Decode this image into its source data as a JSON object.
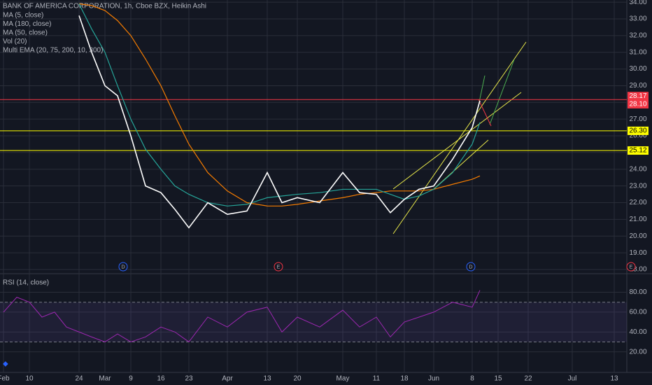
{
  "chart_data": {
    "type": "line",
    "title": "BANK OF AMERICA CORPORATION, 1h, Cboe BZX, Heikin Ashi",
    "legend": [
      "MA (5, close)",
      "MA (180, close)",
      "MA (50, close)",
      "Vol (20)",
      "Multi EMA (20, 75, 200, 10, 300)"
    ],
    "categories": [
      "Feb",
      null,
      "10",
      null,
      null,
      null,
      "24",
      null,
      "Mar",
      null,
      "9",
      null,
      "16",
      null,
      "23",
      null,
      "Apr",
      null,
      "13",
      null,
      "20",
      null,
      "May",
      null,
      "11",
      null,
      "18",
      null,
      "Jun",
      null,
      "8",
      null,
      "15",
      "22",
      "Jul",
      "13"
    ],
    "series": [
      {
        "name": "MA (5, close)",
        "color": "#ffffff",
        "values": [
          null,
          null,
          null,
          null,
          null,
          null,
          33.2,
          31.0,
          29.0,
          28.4,
          26.0,
          23.0,
          22.6,
          21.6,
          20.5,
          22.0,
          21.3,
          21.5,
          23.8,
          22.0,
          22.3,
          22.0,
          23.8,
          22.6,
          22.5,
          21.4,
          22.2,
          22.8,
          23.0,
          24.6,
          26.5,
          28.1,
          null,
          null,
          null,
          null
        ]
      },
      {
        "name": "MA (50, close)",
        "color": "#26a69a",
        "values": [
          null,
          null,
          null,
          null,
          null,
          null,
          33.9,
          32.4,
          31.0,
          29.0,
          27.0,
          25.2,
          24.0,
          23.0,
          22.5,
          22.0,
          21.8,
          21.9,
          22.3,
          22.4,
          22.5,
          22.6,
          22.8,
          22.8,
          22.8,
          22.5,
          22.2,
          22.4,
          22.8,
          23.8,
          25.5,
          26.8,
          null,
          null,
          null,
          null
        ]
      },
      {
        "name": "MA (180, close)",
        "color": "#f57c00",
        "values": [
          null,
          null,
          null,
          null,
          null,
          null,
          33.9,
          33.8,
          33.5,
          32.9,
          32.0,
          30.6,
          29.0,
          27.2,
          25.5,
          23.8,
          22.7,
          22.0,
          21.8,
          21.8,
          21.9,
          22.1,
          22.3,
          22.5,
          22.6,
          22.7,
          22.7,
          22.7,
          22.8,
          23.1,
          23.4,
          23.6,
          null,
          null,
          null,
          null
        ]
      }
    ],
    "ylim": [
      17.79,
      34.13
    ],
    "yticks": [
      {
        "value": 18,
        "label": "18.00"
      },
      {
        "value": 19,
        "label": "19.00"
      },
      {
        "value": 20,
        "label": "20.00"
      },
      {
        "value": 21,
        "label": "21.00"
      },
      {
        "value": 22,
        "label": "22.00"
      },
      {
        "value": 23,
        "label": "23.00"
      },
      {
        "value": 24,
        "label": "24.00"
      },
      {
        "value": 25,
        "label": "25.00"
      },
      {
        "value": 26,
        "label": "26.00"
      },
      {
        "value": 27,
        "label": "27.00"
      },
      {
        "value": 28,
        "label": "28.00"
      },
      {
        "value": 29,
        "label": "29.00"
      },
      {
        "value": 30,
        "label": "30.00"
      },
      {
        "value": 31,
        "label": "31.00"
      },
      {
        "value": 32,
        "label": "32.00"
      },
      {
        "value": 33,
        "label": "33.00"
      },
      {
        "value": 34,
        "label": "34.00"
      }
    ],
    "grid": true,
    "levels": {
      "values": [
        28.17,
        28.1,
        26.3,
        25.12
      ],
      "value_labels": [
        "28.17",
        "28.10",
        "26.30",
        "25.12"
      ],
      "colors": [
        "#f23645",
        "#f23645",
        "#ffff00",
        "#ffff00"
      ]
    },
    "events": [
      "D",
      "E",
      "D",
      "E"
    ],
    "rsi": {
      "title": "RSI (14, close)",
      "color": "#9c27b0",
      "values": [
        60,
        75,
        70,
        55,
        60,
        45,
        40,
        35,
        30,
        38,
        30,
        35,
        45,
        40,
        30,
        55,
        45,
        60,
        65,
        40,
        55,
        45,
        62,
        45,
        55,
        35,
        50,
        55,
        60,
        70,
        65,
        82,
        null,
        null,
        null,
        null
      ],
      "bands": [
        30,
        70
      ],
      "ylim": [
        0,
        98
      ],
      "yticks": [
        {
          "value": 20,
          "label": "20.00"
        },
        {
          "value": 40,
          "label": "40.00"
        },
        {
          "value": 60,
          "label": "60.00"
        },
        {
          "value": 80,
          "label": "80.00"
        }
      ]
    }
  }
}
